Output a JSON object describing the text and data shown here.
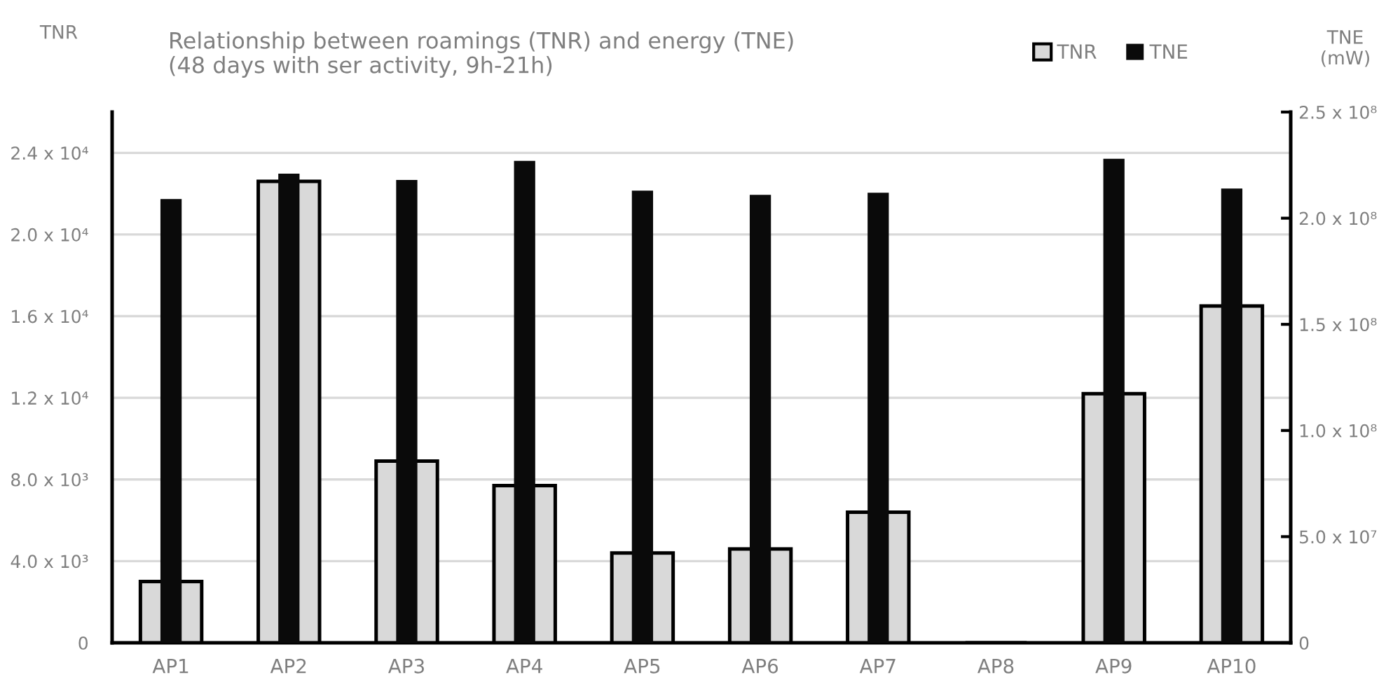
{
  "chart_data": {
    "type": "bar",
    "title": "Relationship between roamings (TNR) and energy (TNE)",
    "subtitle": "(48 days with ser activity, 9h-21h)",
    "ylabel": "TNR",
    "y2label": "TNE\n(mW)",
    "categories": [
      "AP1",
      "AP2",
      "AP3",
      "AP4",
      "AP5",
      "AP6",
      "AP7",
      "AP8",
      "AP9",
      "AP10"
    ],
    "series": [
      {
        "name": "TNR",
        "color": "#d9d9d9",
        "values": [
          3000,
          22600,
          8900,
          7700,
          4400,
          4600,
          6400,
          0,
          12200,
          16500
        ]
      },
      {
        "name": "TNE",
        "color": "#0a0a0a",
        "axis": "y2",
        "values": [
          209000000,
          221000000,
          218000000,
          227000000,
          213000000,
          211000000,
          212000000,
          0,
          228000000,
          214000000
        ]
      }
    ],
    "ylim": [
      0,
      26000
    ],
    "yticks": [
      0,
      {
        "value": 4000,
        "label": "4.0 x 10³"
      },
      {
        "value": 8000,
        "label": "8.0 x 10³"
      },
      {
        "value": 12000,
        "label": "1.2 x 10⁴"
      },
      {
        "value": 16000,
        "label": "1.6 x 10⁴"
      },
      {
        "value": 20000,
        "label": "2.0 x 10⁴"
      },
      {
        "value": 24000,
        "label": "2.4 x 10⁴"
      }
    ],
    "y2lim": [
      0,
      250000000
    ],
    "y2ticks": [
      0,
      {
        "value": 50000000,
        "label": "5.0 x 10⁷"
      },
      {
        "value": 100000000,
        "label": "1.0 x 10⁸"
      },
      {
        "value": 150000000,
        "label": "1.5 x 10⁸"
      },
      {
        "value": 200000000,
        "label": "2.0 x 10⁸"
      },
      {
        "value": 250000000,
        "label": "2.5 x 10⁸"
      }
    ],
    "grid": "y",
    "legend": "top right"
  }
}
